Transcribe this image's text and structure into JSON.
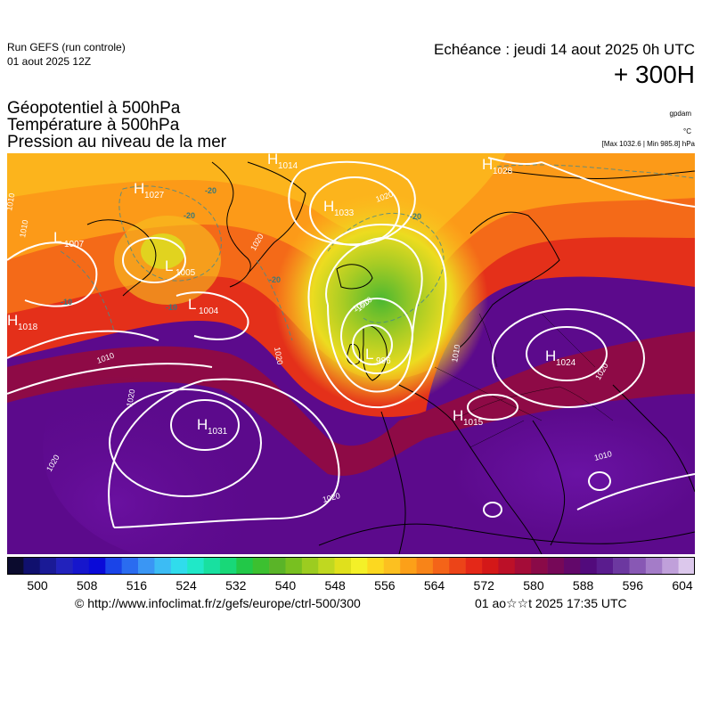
{
  "header": {
    "run_title": "Run GEFS (run controle)",
    "run_date": "01 aout 2025 12Z",
    "echeance": "Echéance : jeudi 14 aout 2025 0h UTC",
    "horizon": "+ 300H"
  },
  "parameters": [
    "Géopotentiel à 500hPa",
    "Température à 500hPa",
    "Pression au niveau de la mer"
  ],
  "units": {
    "geopotential": "gpdam",
    "temperature": "°C",
    "maxmin": "[Max 1032.6 | Min 985.8] hPa"
  },
  "pressure_centers": [
    {
      "type": "H",
      "value": "1031",
      "icon": "high-pressure-center"
    },
    {
      "type": "H",
      "value": "1033",
      "icon": "high-pressure-center"
    },
    {
      "type": "H",
      "value": "1024",
      "icon": "high-pressure-center"
    },
    {
      "type": "H",
      "value": "1015",
      "icon": "high-pressure-center"
    },
    {
      "type": "H",
      "value": "1028",
      "icon": "high-pressure-center"
    },
    {
      "type": "H",
      "value": "1018",
      "icon": "high-pressure-center"
    },
    {
      "type": "H",
      "value": "1014",
      "icon": "high-pressure-center"
    },
    {
      "type": "H",
      "value": "1027",
      "icon": "high-pressure-center"
    },
    {
      "type": "L",
      "value": "1004",
      "icon": "low-pressure-center"
    },
    {
      "type": "L",
      "value": "1007",
      "icon": "low-pressure-center"
    },
    {
      "type": "L",
      "value": "986",
      "icon": "low-pressure-center"
    },
    {
      "type": "L",
      "value": "1005",
      "icon": "low-pressure-center"
    }
  ],
  "isobar_labels": [
    "1020",
    "1020",
    "1020",
    "1020",
    "1020",
    "1020",
    "1010",
    "1010",
    "1010",
    "1010",
    "1000",
    "1010",
    "1020",
    "1010"
  ],
  "temperature_labels": [
    "-20",
    "-20",
    "-20",
    "-20",
    "-10",
    "-10"
  ],
  "colorbar": {
    "colors": [
      "#0b0b2e",
      "#10106e",
      "#1a1a96",
      "#2222bc",
      "#1616cc",
      "#0a0ad8",
      "#1a44e8",
      "#2a6cf0",
      "#3a96f4",
      "#3cbcf4",
      "#30dcec",
      "#20e8c8",
      "#18e0a0",
      "#18d878",
      "#22c848",
      "#3cc030",
      "#5ab428",
      "#78c020",
      "#9ccc20",
      "#c0d820",
      "#e0e01c",
      "#f4f028",
      "#fcd820",
      "#fcc020",
      "#fca018",
      "#f88418",
      "#f46418",
      "#ec4418",
      "#e42818",
      "#d41818",
      "#bc1028",
      "#a40c38",
      "#8a0a48",
      "#760858",
      "#62086a",
      "#520a7c",
      "#5a1c8e",
      "#6c38a0",
      "#8858b4",
      "#a47cc8",
      "#c0a0da",
      "#dcc8ec"
    ],
    "ticks": [
      "500",
      "508",
      "516",
      "524",
      "532",
      "540",
      "548",
      "556",
      "564",
      "572",
      "580",
      "588",
      "596",
      "604"
    ]
  },
  "footer": {
    "url": "© http://www.infoclimat.fr/z/gefs/europe/ctrl-500/300",
    "date": "01 ao☆☆t 2025 17:35 UTC"
  }
}
